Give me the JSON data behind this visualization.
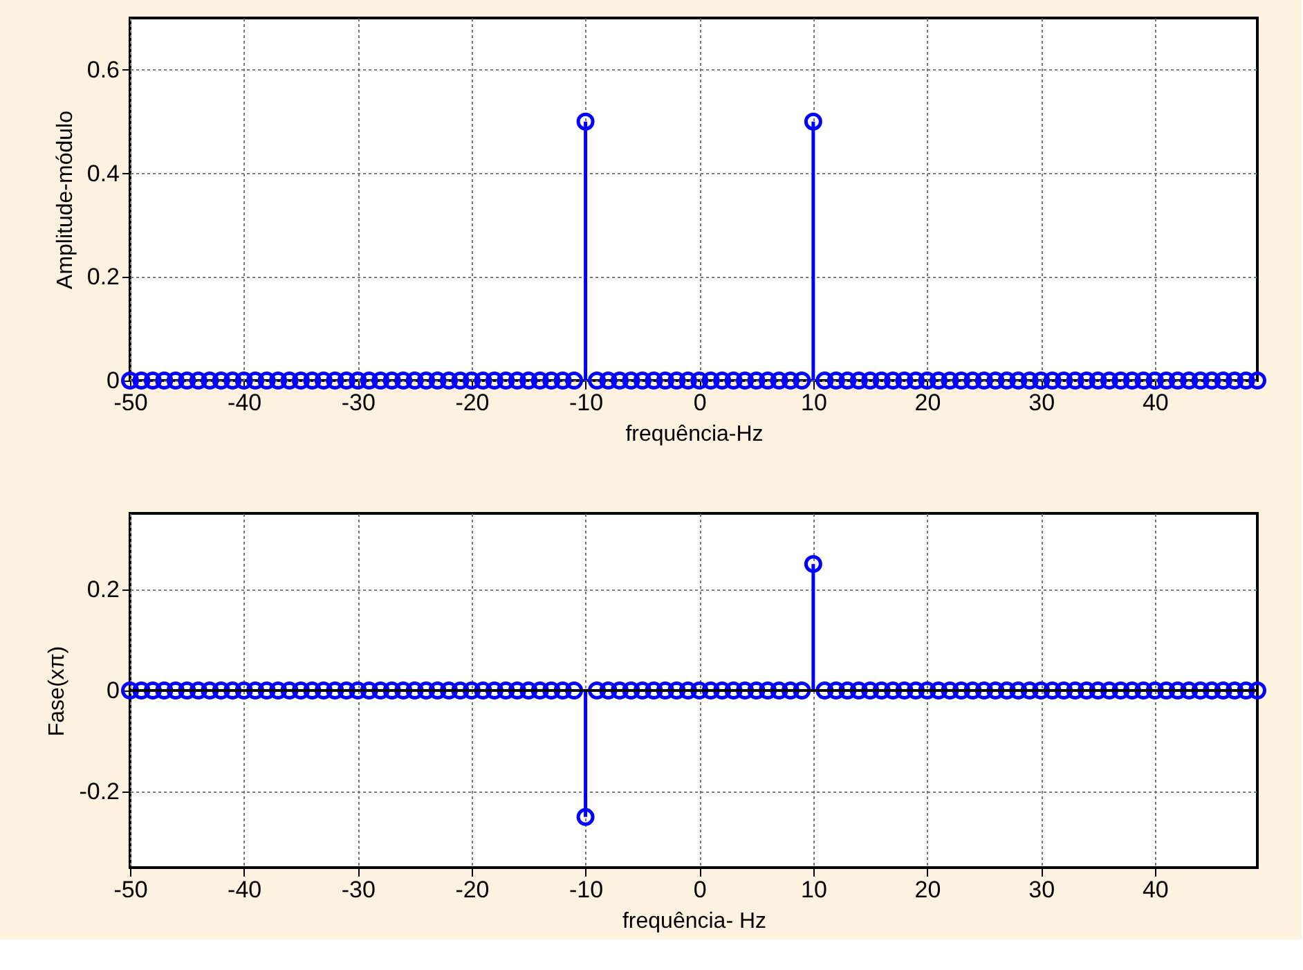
{
  "chart_data": [
    {
      "type": "lollipop",
      "x": [
        -50,
        -49,
        -48,
        -47,
        -46,
        -45,
        -44,
        -43,
        -42,
        -41,
        -40,
        -39,
        -38,
        -37,
        -36,
        -35,
        -34,
        -33,
        -32,
        -31,
        -30,
        -29,
        -28,
        -27,
        -26,
        -25,
        -24,
        -23,
        -22,
        -21,
        -20,
        -19,
        -18,
        -17,
        -16,
        -15,
        -14,
        -13,
        -12,
        -11,
        -10,
        -9,
        -8,
        -7,
        -6,
        -5,
        -4,
        -3,
        -2,
        -1,
        0,
        1,
        2,
        3,
        4,
        5,
        6,
        7,
        8,
        9,
        10,
        11,
        12,
        13,
        14,
        15,
        16,
        17,
        18,
        19,
        20,
        21,
        22,
        23,
        24,
        25,
        26,
        27,
        28,
        29,
        30,
        31,
        32,
        33,
        34,
        35,
        36,
        37,
        38,
        39,
        40,
        41,
        42,
        43,
        44,
        45,
        46,
        47,
        48,
        49
      ],
      "series": [
        {
          "color": "#0000ff",
          "values": [
            0,
            0,
            0,
            0,
            0,
            0,
            0,
            0,
            0,
            0,
            0,
            0,
            0,
            0,
            0,
            0,
            0,
            0,
            0,
            0,
            0,
            0,
            0,
            0,
            0,
            0,
            0,
            0,
            0,
            0,
            0,
            0,
            0,
            0,
            0,
            0,
            0,
            0,
            0,
            0,
            0.5,
            0,
            0,
            0,
            0,
            0,
            0,
            0,
            0,
            0,
            0,
            0,
            0,
            0,
            0,
            0,
            0,
            0,
            0,
            0,
            0.5,
            0,
            0,
            0,
            0,
            0,
            0,
            0,
            0,
            0,
            0,
            0,
            0,
            0,
            0,
            0,
            0,
            0,
            0,
            0,
            0,
            0,
            0,
            0,
            0,
            0,
            0,
            0,
            0,
            0,
            0,
            0,
            0,
            0,
            0,
            0,
            0,
            0,
            0,
            0
          ]
        }
      ],
      "xlim": [
        -50,
        49
      ],
      "xticks": [
        -50,
        -40,
        -30,
        -20,
        -10,
        0,
        10,
        20,
        30,
        40
      ],
      "ylim": [
        0,
        0.7
      ],
      "yticks": [
        0,
        0.2,
        0.4,
        0.6
      ],
      "xlabel": "frequência-Hz",
      "ylabel": "Amplitude-módulo",
      "grid": true,
      "marker": "circle"
    },
    {
      "type": "lollipop",
      "x": [
        -50,
        -49,
        -48,
        -47,
        -46,
        -45,
        -44,
        -43,
        -42,
        -41,
        -40,
        -39,
        -38,
        -37,
        -36,
        -35,
        -34,
        -33,
        -32,
        -31,
        -30,
        -29,
        -28,
        -27,
        -26,
        -25,
        -24,
        -23,
        -22,
        -21,
        -20,
        -19,
        -18,
        -17,
        -16,
        -15,
        -14,
        -13,
        -12,
        -11,
        -10,
        -9,
        -8,
        -7,
        -6,
        -5,
        -4,
        -3,
        -2,
        -1,
        0,
        1,
        2,
        3,
        4,
        5,
        6,
        7,
        8,
        9,
        10,
        11,
        12,
        13,
        14,
        15,
        16,
        17,
        18,
        19,
        20,
        21,
        22,
        23,
        24,
        25,
        26,
        27,
        28,
        29,
        30,
        31,
        32,
        33,
        34,
        35,
        36,
        37,
        38,
        39,
        40,
        41,
        42,
        43,
        44,
        45,
        46,
        47,
        48,
        49
      ],
      "series": [
        {
          "color": "#0000ff",
          "values": [
            0,
            0,
            0,
            0,
            0,
            0,
            0,
            0,
            0,
            0,
            0,
            0,
            0,
            0,
            0,
            0,
            0,
            0,
            0,
            0,
            0,
            0,
            0,
            0,
            0,
            0,
            0,
            0,
            0,
            0,
            0,
            0,
            0,
            0,
            0,
            0,
            0,
            0,
            0,
            0,
            -0.25,
            0,
            0,
            0,
            0,
            0,
            0,
            0,
            0,
            0,
            0,
            0,
            0,
            0,
            0,
            0,
            0,
            0,
            0,
            0,
            0.25,
            0,
            0,
            0,
            0,
            0,
            0,
            0,
            0,
            0,
            0,
            0,
            0,
            0,
            0,
            0,
            0,
            0,
            0,
            0,
            0,
            0,
            0,
            0,
            0,
            0,
            0,
            0,
            0,
            0,
            0,
            0,
            0,
            0,
            0,
            0,
            0,
            0,
            0,
            0
          ]
        }
      ],
      "xlim": [
        -50,
        49
      ],
      "xticks": [
        -50,
        -40,
        -30,
        -20,
        -10,
        0,
        10,
        20,
        30,
        40
      ],
      "ylim": [
        -0.35,
        0.35
      ],
      "yticks": [
        -0.2,
        0,
        0.2
      ],
      "xlabel": "frequência- Hz",
      "ylabel": "Fase(xπ)",
      "grid": true,
      "marker": "circle",
      "ref_lines": [
        {
          "axis": "y",
          "value": 0,
          "color": "#000000"
        }
      ]
    }
  ]
}
